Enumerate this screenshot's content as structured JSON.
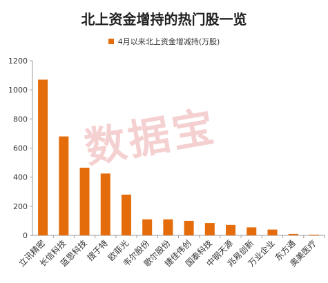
{
  "chart_data": {
    "type": "bar",
    "title": "北上资金增持的热门股一览",
    "watermark": "数据宝",
    "categories": [
      "立讯精密",
      "长信科技",
      "蓝思科技",
      "搜于特",
      "欧菲光",
      "韦尔股份",
      "歌尔股份",
      "捷佳伟创",
      "国泰科技",
      "中钢天源",
      "兆易创新",
      "万业企业",
      "东方通",
      "奥美医疗"
    ],
    "series": [
      {
        "name": "4月以来北上资金增减持(万股)",
        "color": "#e46c0a",
        "values": [
          1070,
          680,
          465,
          425,
          280,
          110,
          110,
          100,
          85,
          72,
          55,
          40,
          10,
          5
        ]
      }
    ],
    "ylim": [
      0,
      1200
    ],
    "yticks": [
      0,
      200,
      400,
      600,
      800,
      1000,
      1200
    ],
    "grid": false,
    "legend_position": "top-center"
  }
}
